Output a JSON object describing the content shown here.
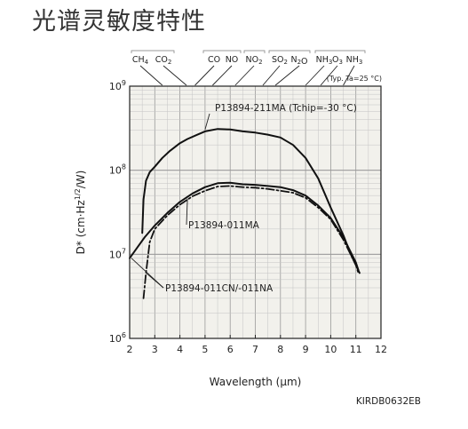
{
  "page": {
    "title": "光谱灵敏度特性",
    "figure_code": "KIRDB0632EB"
  },
  "chart_data": {
    "type": "line",
    "title": "",
    "xlabel": "Wavelength (μm)",
    "ylabel": "D* (cm·Hz1/2/W)",
    "x_scale": "linear",
    "y_scale": "log",
    "xlim": [
      2,
      12
    ],
    "ylim": [
      1000000,
      1000000000
    ],
    "x_ticks": [
      2,
      3,
      4,
      5,
      6,
      7,
      8,
      9,
      10,
      11,
      12
    ],
    "y_ticks": [
      {
        "value": 1000000,
        "base": "10",
        "exp": "6"
      },
      {
        "value": 10000000,
        "base": "10",
        "exp": "7"
      },
      {
        "value": 100000000,
        "base": "10",
        "exp": "8"
      },
      {
        "value": 1000000000,
        "base": "10",
        "exp": "9"
      }
    ],
    "grid": true,
    "condition_note": "(Typ. Ta=25 °C)",
    "gas_absorption_markers": [
      {
        "label": "CH4",
        "x": 3.3
      },
      {
        "label": "CO2",
        "x": 4.26
      },
      {
        "label": "CO",
        "x": 4.6
      },
      {
        "label": "NO",
        "x": 5.3
      },
      {
        "label": "NO2",
        "x": 6.2
      },
      {
        "label": "SO2",
        "x": 7.3
      },
      {
        "label": "N2O",
        "x": 7.8
      },
      {
        "label": "NH3",
        "x": 9.0
      },
      {
        "label": "O3",
        "x": 9.6
      },
      {
        "label": "NH3",
        "x": 10.5
      }
    ],
    "series": [
      {
        "name": "P13894-211MA (Tchip=-30 °C)",
        "style": "solid",
        "x": [
          2.5,
          2.55,
          2.65,
          2.8,
          3.0,
          3.3,
          3.6,
          4.0,
          4.3,
          4.7,
          5.0,
          5.5,
          6.0,
          6.5,
          7.0,
          7.5,
          8.0,
          8.5,
          9.0,
          9.5,
          10.0,
          10.5,
          10.8,
          11.0,
          11.15
        ],
        "y": [
          18000000,
          45000000,
          75000000,
          95000000,
          110000000,
          140000000,
          170000000,
          210000000,
          235000000,
          265000000,
          290000000,
          310000000,
          305000000,
          290000000,
          280000000,
          265000000,
          245000000,
          200000000,
          140000000,
          80000000,
          36000000,
          17000000,
          10000000,
          7500000,
          6000000
        ]
      },
      {
        "name": "P13894-011MA",
        "style": "solid",
        "x": [
          2.0,
          2.3,
          2.6,
          3.0,
          3.5,
          4.0,
          4.5,
          5.0,
          5.5,
          6.0,
          6.5,
          7.0,
          7.5,
          8.0,
          8.5,
          9.0,
          9.5,
          10.0,
          10.5,
          11.0,
          11.1
        ],
        "y": [
          9000000,
          12000000,
          16000000,
          22000000,
          31000000,
          42000000,
          53000000,
          63000000,
          70000000,
          71000000,
          68000000,
          67000000,
          65000000,
          63000000,
          58000000,
          50000000,
          38000000,
          27000000,
          16000000,
          8000000,
          6500000
        ]
      },
      {
        "name": "P13894-011CN/-011NA",
        "style": "dash-dot",
        "x": [
          2.55,
          2.65,
          2.8,
          3.0,
          3.5,
          4.0,
          4.5,
          5.0,
          5.5,
          6.0,
          6.5,
          7.0,
          7.5,
          8.0,
          8.5,
          9.0,
          9.5,
          10.0,
          10.5,
          11.0,
          11.1
        ],
        "y": [
          3000000,
          6000000,
          14000000,
          20000000,
          29000000,
          39000000,
          49000000,
          57000000,
          64000000,
          65000000,
          63000000,
          62000000,
          60000000,
          57000000,
          54000000,
          47000000,
          36000000,
          26000000,
          15000000,
          7500000,
          6000000
        ]
      }
    ]
  }
}
